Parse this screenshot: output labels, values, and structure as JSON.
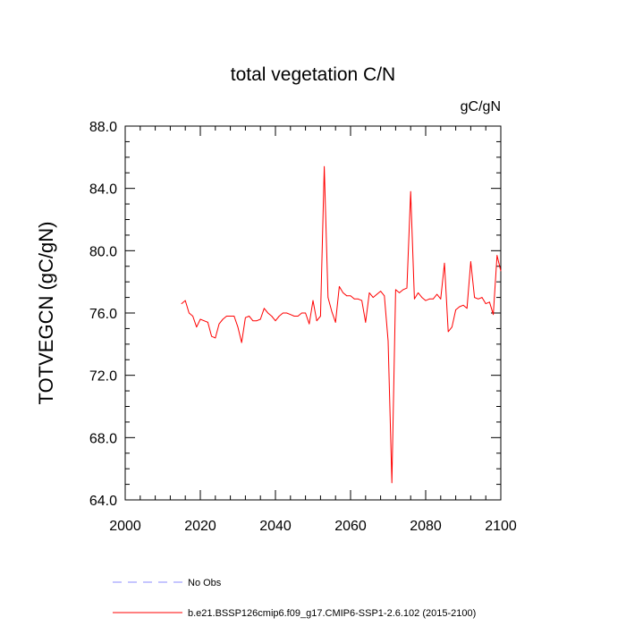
{
  "chart_data": {
    "type": "line",
    "title": "total vegetation C/N",
    "units": "gC/gN",
    "ylabel": "TOTVEGCN  (gC/gN)",
    "xlabel": "",
    "xlim": [
      2000,
      2100
    ],
    "ylim": [
      64,
      88
    ],
    "x_ticks": [
      2000,
      2020,
      2040,
      2060,
      2080,
      2100
    ],
    "y_ticks": [
      64,
      68,
      72,
      76,
      80,
      84,
      88
    ],
    "x_tick_labels": [
      "2000",
      "2020",
      "2040",
      "2060",
      "2080",
      "2100"
    ],
    "y_tick_labels": [
      "64.0",
      "68.0",
      "72.0",
      "76.0",
      "80.0",
      "84.0",
      "88.0"
    ],
    "grid": false,
    "legend_position": "bottom",
    "legend": [
      {
        "label": "No Obs",
        "color": "#8c8cff",
        "style": "dashed"
      },
      {
        "label": "b.e21.BSSP126cmip6.f09_g17.CMIP6-SSP1-2.6.102 (2015-2100)",
        "color": "#ff0000",
        "style": "solid"
      }
    ],
    "series": [
      {
        "name": "b.e21.BSSP126cmip6.f09_g17.CMIP6-SSP1-2.6.102 (2015-2100)",
        "color": "#ff0000",
        "x": [
          2015,
          2016,
          2017,
          2018,
          2019,
          2020,
          2021,
          2022,
          2023,
          2024,
          2025,
          2026,
          2027,
          2028,
          2029,
          2030,
          2031,
          2032,
          2033,
          2034,
          2035,
          2036,
          2037,
          2038,
          2039,
          2040,
          2041,
          2042,
          2043,
          2044,
          2045,
          2046,
          2047,
          2048,
          2049,
          2050,
          2051,
          2052,
          2053,
          2054,
          2055,
          2056,
          2057,
          2058,
          2059,
          2060,
          2061,
          2062,
          2063,
          2064,
          2065,
          2066,
          2067,
          2068,
          2069,
          2070,
          2071,
          2072,
          2073,
          2074,
          2075,
          2076,
          2077,
          2078,
          2079,
          2080,
          2081,
          2082,
          2083,
          2084,
          2085,
          2086,
          2087,
          2088,
          2089,
          2090,
          2091,
          2092,
          2093,
          2094,
          2095,
          2096,
          2097,
          2098,
          2099,
          2100
        ],
        "values": [
          76.6,
          76.8,
          76.0,
          75.8,
          75.1,
          75.6,
          75.5,
          75.4,
          74.5,
          74.4,
          75.3,
          75.6,
          75.8,
          75.8,
          75.8,
          75.1,
          74.1,
          75.7,
          75.8,
          75.5,
          75.5,
          75.6,
          76.3,
          76.0,
          75.8,
          75.5,
          75.8,
          76.0,
          76.0,
          75.9,
          75.8,
          75.8,
          76.0,
          76.0,
          75.3,
          76.8,
          75.5,
          75.8,
          85.4,
          77.0,
          76.1,
          75.4,
          77.7,
          77.3,
          77.1,
          77.1,
          76.9,
          76.9,
          76.8,
          75.4,
          77.3,
          77.0,
          77.2,
          77.4,
          77.1,
          74.2,
          65.1,
          77.5,
          77.3,
          77.5,
          77.6,
          83.8,
          76.9,
          77.3,
          77.0,
          76.8,
          76.9,
          76.9,
          77.2,
          76.9,
          79.2,
          74.8,
          75.1,
          76.2,
          76.4,
          76.5,
          76.3,
          79.3,
          77.0,
          76.9,
          77.0,
          76.6,
          76.7,
          75.9,
          79.7,
          78.7
        ]
      },
      {
        "name": "No Obs",
        "color": "#8c8cff",
        "x": [],
        "values": []
      }
    ]
  }
}
